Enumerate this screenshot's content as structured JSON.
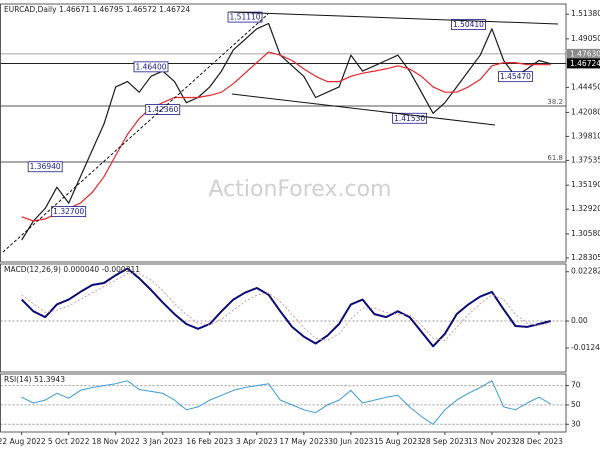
{
  "chart_data": [
    {
      "type": "line",
      "title": "EURCAD,Daily  1.46671 1.46795 1.46572 1.46724",
      "xlim": [
        -1.8,
        46.3
      ],
      "ylim": [
        1.2792,
        1.5235
      ],
      "yticks": [
        {
          "value": 1.5138,
          "label": "1.51380"
        },
        {
          "value": 1.4905,
          "label": "1.49050"
        },
        {
          "value": 1.4445,
          "label": "1.44450"
        },
        {
          "value": 1.4208,
          "label": "1.42080"
        },
        {
          "value": 1.3981,
          "label": "1.39810"
        },
        1.37535,
        {
          "value": 1.3519,
          "label": "1.35190"
        },
        {
          "value": 1.3292,
          "label": "1.32920"
        },
        {
          "value": 1.3058,
          "label": "1.30580"
        },
        1.28305
      ],
      "series": [
        {
          "color": "#1a1a1a",
          "values": [
            1.3,
            1.318,
            1.33,
            1.35,
            1.335,
            1.36,
            1.385,
            1.41,
            1.445,
            1.45,
            1.44,
            1.455,
            1.46,
            1.45,
            1.43,
            1.435,
            1.445,
            1.46,
            1.48,
            1.49,
            1.5,
            1.505,
            1.475,
            1.465,
            1.455,
            1.435,
            1.44,
            1.445,
            1.475,
            1.46,
            1.465,
            1.47,
            1.475,
            1.46,
            1.44,
            1.42,
            1.43,
            1.445,
            1.46,
            1.475,
            1.5,
            1.47,
            1.455,
            1.462,
            1.47,
            1.467
          ]
        },
        {
          "color": "#e8262b",
          "values": [
            1.322,
            1.318,
            1.32,
            1.325,
            1.33,
            1.335,
            1.345,
            1.36,
            1.38,
            1.4,
            1.415,
            1.425,
            1.43,
            1.435,
            1.435,
            1.435,
            1.437,
            1.44,
            1.448,
            1.458,
            1.468,
            1.478,
            1.475,
            1.47,
            1.462,
            1.455,
            1.45,
            1.45,
            1.455,
            1.458,
            1.46,
            1.462,
            1.465,
            1.462,
            1.455,
            1.445,
            1.44,
            1.44,
            1.445,
            1.452,
            1.465,
            1.468,
            1.468,
            1.466,
            1.466,
            1.466
          ]
        }
      ],
      "levels": [
        {
          "value": 1.4763,
          "label": "1.47630",
          "color": "#8a8a8a"
        },
        {
          "value": 1.46724,
          "label": "1.46724",
          "color": "#000000"
        }
      ],
      "fib_levels": [
        {
          "name": "38.2",
          "price": 1.4269
        },
        {
          "name": "61.8",
          "price": 1.3739
        }
      ],
      "annotations": [
        {
          "x": 19,
          "value": 1.5111,
          "label": "1.51110"
        },
        {
          "x": 38,
          "value": 1.5041,
          "label": "1.50410"
        },
        {
          "x": 11,
          "value": 1.464,
          "label": "1.46400"
        },
        {
          "x": 12,
          "value": 1.4236,
          "label": "1.42360"
        },
        {
          "x": 33,
          "value": 1.4153,
          "label": "1.41530"
        },
        {
          "x": 42,
          "value": 1.4547,
          "label": "1.45470"
        },
        {
          "x": 2,
          "value": 1.3694,
          "label": "1.36940"
        },
        {
          "x": 4,
          "value": 1.327,
          "label": "1.32700"
        }
      ],
      "watermark": "ActionForex.com"
    },
    {
      "type": "line",
      "title": "MACD(12,26,9) 0.000040 -0.000311",
      "xlim": [
        -1.8,
        46.3
      ],
      "ylim": [
        -0.0236,
        0.0264
      ],
      "yticks": [
        0.02282,
        {
          "value": 0,
          "label": "0.00"
        },
        -0.01247
      ],
      "series": [
        {
          "color": "#0a0a78",
          "width": 2,
          "values": [
            0.0099,
            0.0045,
            0.0018,
            0.0077,
            0.0099,
            0.0135,
            0.0167,
            0.0176,
            0.0212,
            0.0243,
            0.0198,
            0.0144,
            0.0086,
            0.0032,
            -0.0014,
            -0.0036,
            -0.0014,
            0.0045,
            0.0099,
            0.0131,
            0.0153,
            0.0122,
            0.0045,
            -0.0027,
            -0.0072,
            -0.0104,
            -0.0068,
            -0.0014,
            0.0077,
            0.0099,
            0.0032,
            0.0018,
            0.0045,
            0.0018,
            -0.005,
            -0.0117,
            -0.0059,
            0.0032,
            0.0077,
            0.0113,
            0.0135,
            0.0054,
            -0.0023,
            -0.0027,
            -0.0014,
            0.0
          ]
        },
        {
          "color": "#d9a0a0",
          "width": 1,
          "dashed": true,
          "values": [
            0.012,
            0.008,
            0.004,
            0.005,
            0.007,
            0.01,
            0.013,
            0.016,
            0.019,
            0.022,
            0.022,
            0.019,
            0.014,
            0.008,
            0.003,
            -0.001,
            -0.002,
            0.001,
            0.005,
            0.009,
            0.012,
            0.013,
            0.009,
            0.003,
            -0.003,
            -0.008,
            -0.009,
            -0.006,
            0.001,
            0.006,
            0.006,
            0.004,
            0.003,
            0.003,
            -0.002,
            -0.008,
            -0.009,
            -0.003,
            0.003,
            0.008,
            0.012,
            0.01,
            0.003,
            -0.001,
            -0.002,
            -0.001
          ]
        }
      ]
    },
    {
      "type": "line",
      "title": "RSI(14) 51.3943",
      "xlim": [
        -1.8,
        46.3
      ],
      "ylim": [
        22,
        82
      ],
      "grid": true,
      "yticks": [
        70,
        50,
        30
      ],
      "xticks": [
        {
          "value": 0,
          "label": "22 Aug 2022"
        },
        {
          "value": 4,
          "label": "5 Oct 2022"
        },
        {
          "value": 8,
          "label": "18 Nov 2022"
        },
        {
          "value": 12,
          "label": "3 Jan 2023"
        },
        {
          "value": 16,
          "label": "16 Feb 2023"
        },
        {
          "value": 20,
          "label": "3 Apr 2023"
        },
        {
          "value": 24,
          "label": "17 May 2023"
        },
        {
          "value": 28,
          "label": "30 Jun 2023"
        },
        {
          "value": 32,
          "label": "15 Aug 2023"
        },
        {
          "value": 36,
          "label": "28 Sep 2023"
        },
        {
          "value": 40,
          "label": "13 Nov 2023"
        },
        {
          "value": 44,
          "label": "28 Dec 2023"
        }
      ],
      "series": [
        {
          "color": "#3d9ad6",
          "width": 1,
          "values": [
            58,
            52,
            55,
            62,
            57,
            65,
            68,
            70,
            72,
            75,
            66,
            64,
            62,
            55,
            45,
            48,
            55,
            60,
            65,
            68,
            70,
            72,
            55,
            50,
            45,
            42,
            50,
            55,
            65,
            52,
            55,
            58,
            60,
            48,
            38,
            30,
            45,
            55,
            62,
            68,
            75,
            48,
            45,
            52,
            58,
            51
          ]
        }
      ]
    }
  ]
}
